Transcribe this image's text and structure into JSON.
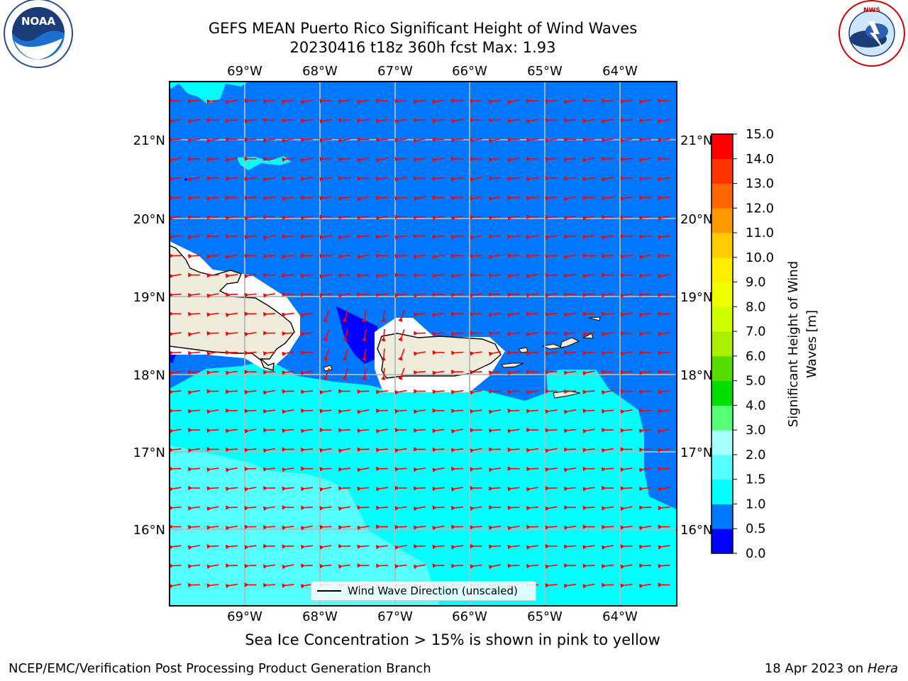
{
  "header": {
    "title_line1": "GEFS MEAN Puerto Rico Significant Height of Wind Waves",
    "title_line2": "20230416 t18z 360h fcst   Max: 1.93"
  },
  "logos": {
    "left": "NOAA",
    "left_ring_text": "NATIONAL OCEANIC AND ATMOSPHERIC ADMINISTRATION · U.S. DEPARTMENT OF COMMERCE",
    "right_ring_text": "NATIONAL WEATHER SERVICE"
  },
  "map": {
    "lon_labels": [
      "69°W",
      "68°W",
      "67°W",
      "66°W",
      "65°W",
      "64°W"
    ],
    "lat_labels": [
      "21°N",
      "20°N",
      "19°N",
      "18°N",
      "17°N",
      "16°N"
    ],
    "lon_range": [
      -70,
      -63.25
    ],
    "lat_range": [
      15.0,
      21.75
    ],
    "regions": [
      "Hispaniola",
      "Puerto Rico",
      "Virgin Islands"
    ]
  },
  "legend": {
    "label": "Wind Wave Direction (unscaled)"
  },
  "colorbar": {
    "label_line1": "Significant Height of Wind",
    "label_line2": "Waves [m]",
    "ticks": [
      "0.0",
      "0.5",
      "1.0",
      "1.5",
      "2.0",
      "3.0",
      "4.0",
      "5.0",
      "6.0",
      "7.0",
      "8.0",
      "9.0",
      "10.0",
      "11.0",
      "12.0",
      "13.0",
      "14.0",
      "15.0"
    ],
    "colors": [
      "#0000ff",
      "#0077ff",
      "#00ffff",
      "#55ffff",
      "#aaffff",
      "#55ff77",
      "#00dd00",
      "#55dd00",
      "#aaee00",
      "#ccff00",
      "#eeff00",
      "#ffee00",
      "#ffcc00",
      "#ff9900",
      "#ff6600",
      "#ff3300",
      "#ff0000"
    ]
  },
  "notes": {
    "sea_ice": "Sea Ice Concentration > 15% is shown in pink to yellow"
  },
  "footer": {
    "left": "NCEP/EMC/Verification Post Processing Product Generation Branch",
    "right_date": "18 Apr 2023 on ",
    "right_machine": "Hera"
  }
}
